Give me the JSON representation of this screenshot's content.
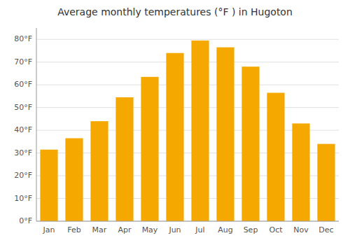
{
  "chart_data": {
    "type": "bar",
    "title": "Average monthly temperatures (°F ) in Hugoton",
    "categories": [
      "Jan",
      "Feb",
      "Mar",
      "Apr",
      "May",
      "Jun",
      "Jul",
      "Aug",
      "Sep",
      "Oct",
      "Nov",
      "Dec"
    ],
    "values": [
      31.5,
      36.5,
      44,
      54.5,
      63.5,
      74,
      79.5,
      76.5,
      68,
      56.5,
      43,
      34
    ],
    "color": "#F5A800",
    "ylim": [
      0,
      85
    ],
    "yticks": [
      {
        "value": 0,
        "label": "0°F"
      },
      {
        "value": 10,
        "label": "10°F"
      },
      {
        "value": 20,
        "label": "20°F"
      },
      {
        "value": 30,
        "label": "30°F"
      },
      {
        "value": 40,
        "label": "40°F"
      },
      {
        "value": 50,
        "label": "50°F"
      },
      {
        "value": 60,
        "label": "60°F"
      },
      {
        "value": 70,
        "label": "70°F"
      },
      {
        "value": 80,
        "label": "80°F"
      }
    ],
    "grid": true
  }
}
